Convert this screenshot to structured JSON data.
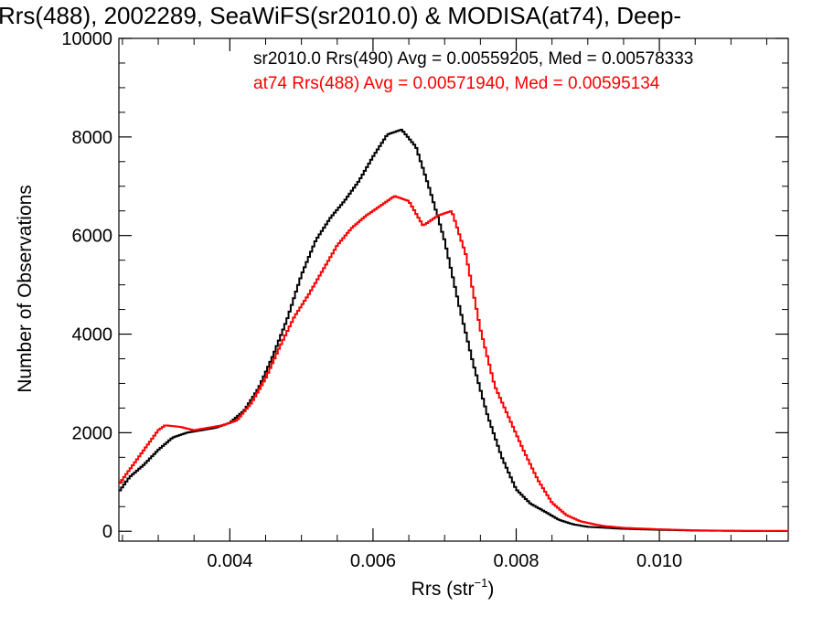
{
  "chart_data": {
    "type": "line",
    "title": "Rrs(488), 2002289, SeaWiFS(sr2010.0) & MODISA(at74), Deep-",
    "xlabel": "Rrs (str",
    "xlabel_sup": "−1",
    "xlabel_end": ")",
    "ylabel": "Number of Observations",
    "xlim": [
      0.00245,
      0.0118
    ],
    "ylim": [
      -200,
      10000
    ],
    "xticks": [
      0.004,
      0.006,
      0.008,
      0.01
    ],
    "xtick_labels": [
      "0.004",
      "0.006",
      "0.008",
      "0.010"
    ],
    "yticks": [
      0,
      2000,
      4000,
      6000,
      8000,
      10000
    ],
    "ytick_labels": [
      "0",
      "2000",
      "4000",
      "6000",
      "8000",
      "10000"
    ],
    "grid": false,
    "legend_position": "top-right",
    "series": [
      {
        "name": "sr2010.0 Rrs(490) Avg = 0.00559205, Med = 0.00578333",
        "color": "#000000",
        "x": [
          0.00245,
          0.0026,
          0.0028,
          0.003,
          0.0032,
          0.0034,
          0.0036,
          0.0038,
          0.004,
          0.0042,
          0.0044,
          0.0046,
          0.0048,
          0.005,
          0.0052,
          0.0054,
          0.0056,
          0.0058,
          0.006,
          0.0062,
          0.0064,
          0.0066,
          0.0068,
          0.007,
          0.0072,
          0.0074,
          0.0076,
          0.0078,
          0.008,
          0.0082,
          0.0084,
          0.0086,
          0.0088,
          0.009,
          0.0095,
          0.01,
          0.0105,
          0.011,
          0.0118
        ],
        "y": [
          800,
          1100,
          1350,
          1650,
          1900,
          2000,
          2050,
          2100,
          2200,
          2450,
          2900,
          3550,
          4300,
          5200,
          5900,
          6350,
          6700,
          7100,
          7600,
          8050,
          8150,
          7800,
          6900,
          5900,
          4600,
          3400,
          2350,
          1500,
          850,
          560,
          400,
          230,
          140,
          90,
          50,
          30,
          15,
          8,
          5
        ]
      },
      {
        "name": "at74 Rrs(488) Avg = 0.00571940, Med = 0.00595134",
        "color": "#ff0000",
        "x": [
          0.00245,
          0.0026,
          0.0028,
          0.003,
          0.0031,
          0.0033,
          0.0035,
          0.0037,
          0.0039,
          0.0041,
          0.0043,
          0.0045,
          0.0047,
          0.0049,
          0.0051,
          0.0053,
          0.0055,
          0.0057,
          0.0059,
          0.0061,
          0.0063,
          0.0065,
          0.0067,
          0.0069,
          0.0071,
          0.0073,
          0.0075,
          0.0077,
          0.0079,
          0.0081,
          0.0083,
          0.0085,
          0.0087,
          0.0089,
          0.0092,
          0.0095,
          0.01,
          0.0105,
          0.011,
          0.0118
        ],
        "y": [
          950,
          1250,
          1650,
          2050,
          2150,
          2120,
          2050,
          2100,
          2150,
          2250,
          2600,
          3100,
          3750,
          4350,
          4800,
          5300,
          5800,
          6150,
          6400,
          6600,
          6800,
          6700,
          6200,
          6400,
          6500,
          5600,
          4100,
          2950,
          2300,
          1650,
          1050,
          580,
          330,
          200,
          110,
          70,
          40,
          20,
          10,
          5
        ]
      }
    ]
  }
}
